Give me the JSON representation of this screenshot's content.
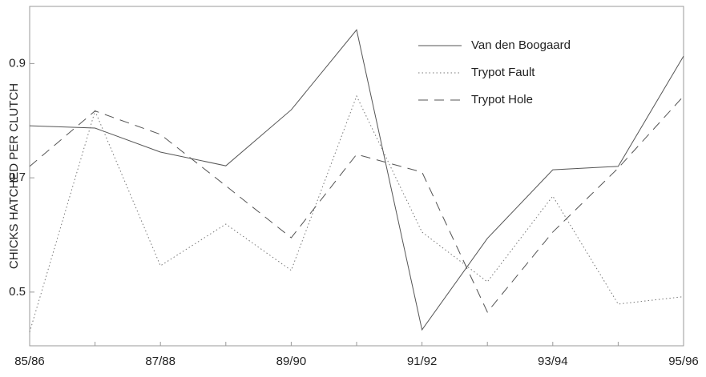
{
  "chart_data": {
    "type": "line",
    "y_label": "CHICKS HATCHED PER CLUTCH",
    "categories": [
      "85/86",
      null,
      "87/88",
      null,
      "89/90",
      null,
      "91/92",
      null,
      "93/94",
      null,
      "95/96"
    ],
    "series": [
      {
        "name": "Van den Boogaard",
        "color": "#555555",
        "style": "solid",
        "values": [
          0.791,
          0.787,
          0.745,
          0.721,
          0.819,
          0.959,
          0.434,
          0.594,
          0.714,
          0.72,
          0.913
        ]
      },
      {
        "name": "Trypot Fault",
        "color": "#777777",
        "style": "dotted",
        "values": [
          0.43,
          0.817,
          0.546,
          0.619,
          0.538,
          0.843,
          0.605,
          0.518,
          0.668,
          0.479,
          0.492
        ]
      },
      {
        "name": "Trypot Hole",
        "color": "#555555",
        "style": "dashed",
        "values": [
          0.72,
          0.817,
          0.776,
          0.686,
          0.595,
          0.741,
          0.71,
          0.465,
          0.605,
          0.717,
          0.843
        ]
      }
    ],
    "ylim": [
      0.406,
      1.0
    ],
    "yticks": [
      0.5,
      0.7,
      0.9
    ],
    "grid": false,
    "legend": "upper right"
  }
}
